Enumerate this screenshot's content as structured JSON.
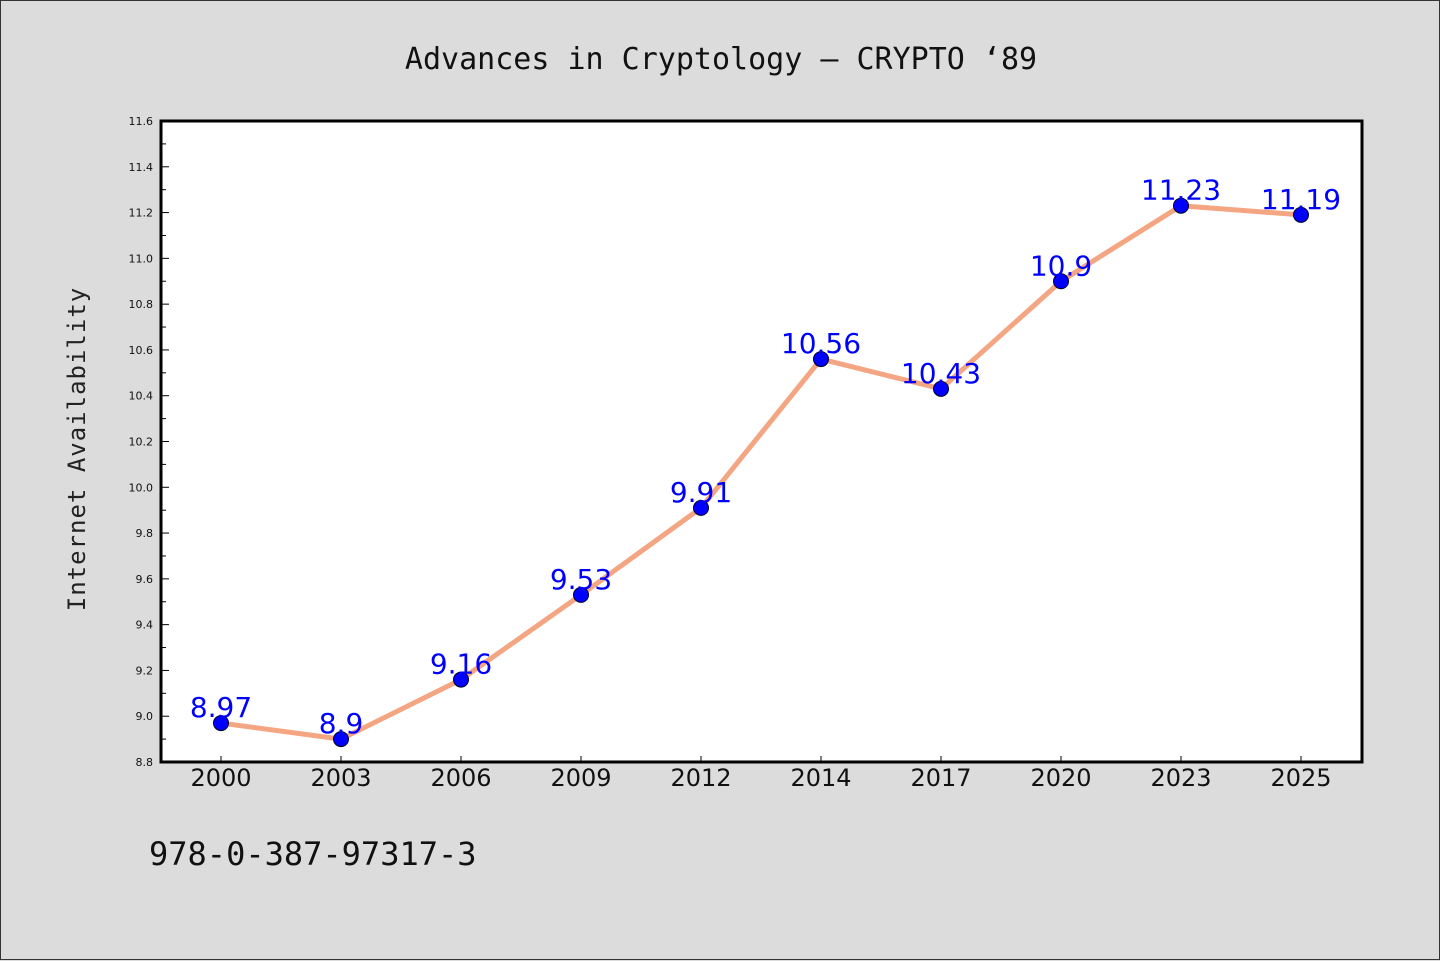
{
  "chart_data": {
    "type": "line",
    "title": "Advances in Cryptology – CRYPTO  ‘89",
    "xlabel": "",
    "ylabel": "Internet Availability",
    "categories": [
      "2000",
      "2003",
      "2006",
      "2009",
      "2012",
      "2014",
      "2017",
      "2020",
      "2023",
      "2025"
    ],
    "series": [
      {
        "values": [
          8.97,
          8.9,
          9.16,
          9.53,
          9.91,
          10.56,
          10.43,
          10.9,
          11.23,
          11.19
        ],
        "data_labels": [
          "8.97",
          "8.9",
          "9.16",
          "9.53",
          "9.91",
          "10.56",
          "10.43",
          "10.9",
          "11.23",
          "11.19"
        ],
        "line_color": "#f4a582",
        "marker_color": "#0000ff"
      }
    ],
    "ylim": [
      8.8,
      11.6
    ],
    "yticks": [
      "8.8",
      "9.0",
      "9.2",
      "9.4",
      "9.6",
      "9.8",
      "10.0",
      "10.2",
      "10.4",
      "10.6",
      "10.8",
      "11.0",
      "11.2",
      "11.4",
      "11.6"
    ],
    "grid": false,
    "legend": "none"
  },
  "footer": {
    "isbn": "978-0-387-97317-3"
  },
  "colors": {
    "background": "#dcdcdc",
    "plot_background": "#ffffff",
    "axis": "#000000",
    "label": "#0000ff"
  }
}
